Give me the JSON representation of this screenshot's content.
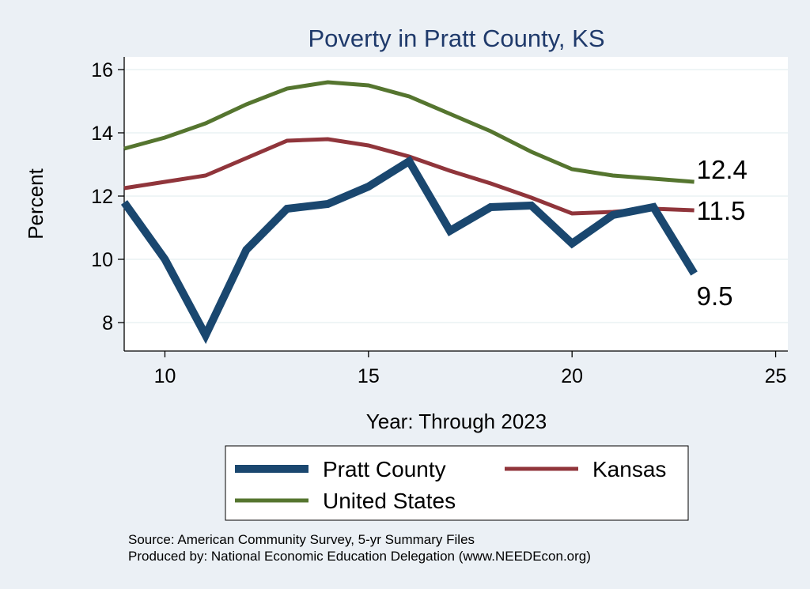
{
  "chart_data": {
    "type": "line",
    "title": "Poverty in Pratt County, KS",
    "xlabel": "Year: Through 2023",
    "ylabel": "Percent",
    "xlim": [
      9,
      25.3
    ],
    "ylim": [
      7.1,
      16.4
    ],
    "xticks": [
      10,
      15,
      20,
      25
    ],
    "yticks": [
      8,
      10,
      12,
      14,
      16
    ],
    "grid": true,
    "legend_position": "bottom",
    "x": [
      9,
      10,
      11,
      12,
      13,
      14,
      15,
      16,
      17,
      18,
      19,
      20,
      21,
      22,
      23
    ],
    "series": [
      {
        "name": "Pratt County",
        "color": "#1a476f",
        "values": [
          11.8,
          10.0,
          7.6,
          10.3,
          11.6,
          11.75,
          12.3,
          13.1,
          10.9,
          11.65,
          11.7,
          10.5,
          11.4,
          11.65,
          9.55
        ],
        "end_label": "9.5"
      },
      {
        "name": "Kansas",
        "color": "#90353b",
        "values": [
          12.25,
          12.45,
          12.65,
          13.2,
          13.75,
          13.8,
          13.6,
          13.25,
          12.8,
          12.4,
          11.95,
          11.45,
          11.5,
          11.6,
          11.55
        ],
        "end_label": "11.5"
      },
      {
        "name": "United States",
        "color": "#55752f",
        "values": [
          13.5,
          13.85,
          14.3,
          14.9,
          15.4,
          15.6,
          15.5,
          15.15,
          14.6,
          14.05,
          13.4,
          12.85,
          12.65,
          12.55,
          12.45
        ],
        "end_label": "12.4"
      }
    ],
    "notes": [
      "Source: American Community Survey, 5-yr Summary Files",
      "Produced by: National Economic Education Delegation (www.NEEDEcon.org)"
    ]
  }
}
